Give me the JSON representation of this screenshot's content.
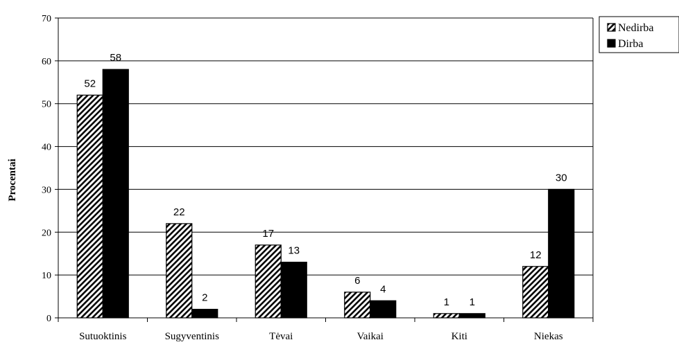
{
  "chart_data": {
    "type": "bar",
    "title": "",
    "xlabel": "",
    "ylabel": "Procentai",
    "ylim": [
      0,
      70
    ],
    "yticks": [
      0,
      10,
      20,
      30,
      40,
      50,
      60,
      70
    ],
    "grid": true,
    "legend_position": "top-right",
    "categories": [
      "Sutuoktinis",
      "Sugyventinis",
      "Tėvai",
      "Vaikai",
      "Kiti",
      "Niekas"
    ],
    "series": [
      {
        "name": "Nedirba",
        "values": [
          52,
          22,
          17,
          6,
          1,
          12
        ],
        "fill": "hatched"
      },
      {
        "name": "Dirba",
        "values": [
          58,
          2,
          13,
          4,
          1,
          30
        ],
        "fill": "#000000"
      }
    ]
  }
}
